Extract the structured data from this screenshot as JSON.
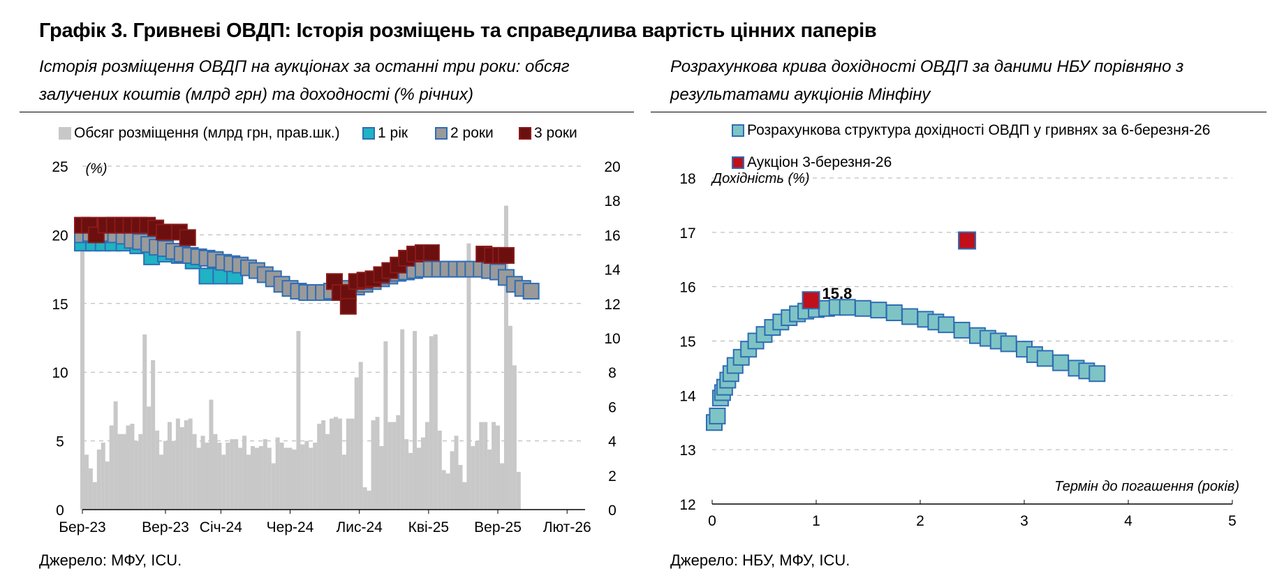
{
  "title": "Графік 3. Гривневі ОВДП: Історія розміщень та справедлива вартість цінних паперів",
  "left": {
    "subtitle": "Історія розміщення ОВДП на аукціонах за останні три роки: обсяг залучених коштів (млрд грн) та доходності (% річних)",
    "source": "Джерело: МФУ, ICU."
  },
  "right": {
    "subtitle": "Розрахункова крива дохідності ОВДП за даними НБУ порівняно з результатами аукціонів Мінфіну",
    "source": "Джерело: НБУ, МФУ, ICU."
  },
  "colors": {
    "volume": "#c8c8c8",
    "y1": "#1fb3c4",
    "y2": "#9a9a9a",
    "y3": "#6b0f0f",
    "marker_border": "#2e6db5",
    "curve_fill": "#7fc4c4",
    "auction": "#c0101a",
    "grid": "#b0b0b0"
  },
  "chart_data": [
    {
      "type": "bar+scatter",
      "legend": [
        "Обсяг розміщення (млрд грн, прав.шк.)",
        "1 рік",
        "2 роки",
        "3 роки"
      ],
      "y_left_label": "(%)",
      "y_left_range": [
        0,
        25
      ],
      "y_left_ticks": [
        "0",
        "5",
        "10",
        "15",
        "20",
        "25"
      ],
      "y_right_range": [
        0,
        20
      ],
      "y_right_ticks": [
        "0",
        "2",
        "4",
        "6",
        "8",
        "10",
        "12",
        "14",
        "16",
        "18",
        "20"
      ],
      "x_ticks": [
        "Бер-23",
        "Вер-23",
        "Січ-24",
        "Чер-24",
        "Лис-24",
        "Кві-25",
        "Вер-25",
        "Лют-26"
      ],
      "x_range_months": [
        0,
        36.3
      ],
      "volume_bars_mlrd": [
        [
          0.0,
          16.3
        ],
        [
          0.3,
          3.2
        ],
        [
          0.6,
          2.4
        ],
        [
          0.9,
          1.6
        ],
        [
          1.2,
          3.5
        ],
        [
          1.5,
          3.9
        ],
        [
          1.8,
          2.8
        ],
        [
          2.1,
          4.9
        ],
        [
          2.4,
          6.3
        ],
        [
          2.7,
          4.4
        ],
        [
          3.0,
          4.4
        ],
        [
          3.3,
          4.9
        ],
        [
          3.6,
          5.0
        ],
        [
          3.9,
          4.0
        ],
        [
          4.2,
          4.4
        ],
        [
          4.5,
          10.2
        ],
        [
          4.8,
          6.0
        ],
        [
          5.1,
          8.7
        ],
        [
          5.4,
          4.6
        ],
        [
          5.7,
          3.2
        ],
        [
          6.0,
          4.0
        ],
        [
          6.3,
          5.1
        ],
        [
          6.6,
          4.0
        ],
        [
          6.9,
          5.3
        ],
        [
          7.2,
          4.8
        ],
        [
          7.5,
          5.2
        ],
        [
          7.8,
          5.3
        ],
        [
          8.1,
          4.4
        ],
        [
          8.4,
          3.6
        ],
        [
          8.7,
          4.3
        ],
        [
          9.0,
          3.9
        ],
        [
          9.3,
          6.4
        ],
        [
          9.6,
          4.4
        ],
        [
          9.9,
          3.9
        ],
        [
          10.2,
          3.2
        ],
        [
          10.5,
          3.9
        ],
        [
          10.8,
          4.1
        ],
        [
          11.1,
          4.1
        ],
        [
          11.4,
          3.6
        ],
        [
          11.7,
          4.3
        ],
        [
          12.0,
          3.2
        ],
        [
          12.3,
          3.7
        ],
        [
          12.6,
          3.6
        ],
        [
          12.9,
          3.7
        ],
        [
          13.2,
          4.1
        ],
        [
          13.5,
          3.6
        ],
        [
          13.8,
          2.7
        ],
        [
          14.1,
          4.2
        ],
        [
          14.4,
          3.9
        ],
        [
          14.7,
          3.6
        ],
        [
          15.0,
          3.6
        ],
        [
          15.3,
          3.5
        ],
        [
          15.6,
          10.4
        ],
        [
          15.9,
          3.8
        ],
        [
          16.2,
          4.0
        ],
        [
          16.5,
          3.6
        ],
        [
          16.8,
          3.9
        ],
        [
          17.1,
          5.0
        ],
        [
          17.4,
          5.2
        ],
        [
          17.7,
          4.4
        ],
        [
          18.0,
          5.3
        ],
        [
          18.3,
          5.4
        ],
        [
          18.6,
          5.3
        ],
        [
          18.9,
          3.2
        ],
        [
          19.2,
          5.3
        ],
        [
          19.5,
          5.3
        ],
        [
          19.8,
          7.7
        ],
        [
          20.1,
          8.6
        ],
        [
          20.4,
          1.3
        ],
        [
          20.7,
          1.1
        ],
        [
          21.0,
          5.2
        ],
        [
          21.3,
          5.4
        ],
        [
          21.6,
          3.7
        ],
        [
          21.9,
          9.8
        ],
        [
          22.2,
          5.1
        ],
        [
          22.5,
          5.1
        ],
        [
          22.8,
          5.5
        ],
        [
          23.1,
          10.5
        ],
        [
          23.4,
          4.1
        ],
        [
          23.7,
          3.3
        ],
        [
          24.0,
          10.4
        ],
        [
          24.3,
          3.6
        ],
        [
          24.6,
          4.2
        ],
        [
          24.9,
          5.1
        ],
        [
          25.2,
          10.1
        ],
        [
          25.5,
          10.2
        ],
        [
          25.8,
          4.6
        ],
        [
          26.1,
          2.3
        ],
        [
          26.4,
          2.1
        ],
        [
          26.7,
          3.4
        ],
        [
          27.0,
          4.3
        ],
        [
          27.3,
          2.6
        ],
        [
          27.6,
          1.6
        ],
        [
          27.9,
          15.5
        ],
        [
          28.2,
          3.7
        ],
        [
          28.5,
          4.0
        ],
        [
          28.8,
          5.1
        ],
        [
          29.1,
          5.1
        ],
        [
          29.4,
          3.5
        ],
        [
          29.7,
          5.1
        ],
        [
          30.0,
          4.9
        ],
        [
          30.3,
          2.7
        ],
        [
          30.6,
          17.7
        ],
        [
          30.9,
          10.7
        ],
        [
          31.2,
          8.4
        ],
        [
          31.5,
          2.2
        ]
      ],
      "series_1y_pct": [
        [
          0.0,
          19.4
        ],
        [
          0.8,
          19.4
        ],
        [
          1.5,
          19.4
        ],
        [
          2.2,
          19.4
        ],
        [
          3.0,
          19.4
        ],
        [
          4.0,
          19.2
        ],
        [
          5.0,
          18.4
        ],
        [
          6.0,
          18.6
        ],
        [
          7.0,
          18.5
        ],
        [
          8.0,
          18.1
        ],
        [
          9.0,
          17.0
        ],
        [
          10.0,
          17.0
        ],
        [
          11.0,
          17.0
        ]
      ],
      "series_2y_pct": [
        [
          0.0,
          20.0
        ],
        [
          0.6,
          20.1
        ],
        [
          1.2,
          20.0
        ],
        [
          1.8,
          20.1
        ],
        [
          2.4,
          20.0
        ],
        [
          3.0,
          19.9
        ],
        [
          3.6,
          19.6
        ],
        [
          4.2,
          19.5
        ],
        [
          4.8,
          19.3
        ],
        [
          5.4,
          19.1
        ],
        [
          6.0,
          19.0
        ],
        [
          6.6,
          18.8
        ],
        [
          7.2,
          18.6
        ],
        [
          7.8,
          18.5
        ],
        [
          8.4,
          18.4
        ],
        [
          9.0,
          18.3
        ],
        [
          9.6,
          18.2
        ],
        [
          10.2,
          18.0
        ],
        [
          10.8,
          17.9
        ],
        [
          11.4,
          17.8
        ],
        [
          12.0,
          17.6
        ],
        [
          12.6,
          17.4
        ],
        [
          13.2,
          17.1
        ],
        [
          13.8,
          16.8
        ],
        [
          14.4,
          16.4
        ],
        [
          15.0,
          16.1
        ],
        [
          15.6,
          15.9
        ],
        [
          16.2,
          15.8
        ],
        [
          16.8,
          15.8
        ],
        [
          17.4,
          15.8
        ],
        [
          18.0,
          15.9
        ],
        [
          18.6,
          16.0
        ],
        [
          19.2,
          16.1
        ],
        [
          19.8,
          16.2
        ],
        [
          20.4,
          16.4
        ],
        [
          21.0,
          16.6
        ],
        [
          21.6,
          16.8
        ],
        [
          22.2,
          17.0
        ],
        [
          22.8,
          17.2
        ],
        [
          23.4,
          17.3
        ],
        [
          24.0,
          17.4
        ],
        [
          24.6,
          17.5
        ],
        [
          25.2,
          17.5
        ],
        [
          25.8,
          17.5
        ],
        [
          26.4,
          17.5
        ],
        [
          27.0,
          17.5
        ],
        [
          27.6,
          17.5
        ],
        [
          28.2,
          17.5
        ],
        [
          28.8,
          17.5
        ],
        [
          29.4,
          17.4
        ],
        [
          30.0,
          17.3
        ],
        [
          30.6,
          16.9
        ],
        [
          31.2,
          16.4
        ],
        [
          31.8,
          16.1
        ],
        [
          32.4,
          15.9
        ]
      ],
      "series_3y_pct": [
        [
          0.0,
          20.7
        ],
        [
          0.5,
          20.7
        ],
        [
          1.0,
          20.0
        ],
        [
          1.7,
          20.7
        ],
        [
          2.3,
          20.7
        ],
        [
          2.9,
          20.7
        ],
        [
          3.5,
          20.7
        ],
        [
          4.1,
          20.7
        ],
        [
          4.7,
          20.7
        ],
        [
          5.3,
          20.5
        ],
        [
          5.9,
          20.2
        ],
        [
          7.0,
          20.2
        ],
        [
          7.6,
          19.8
        ],
        [
          18.2,
          16.6
        ],
        [
          18.6,
          15.8
        ],
        [
          19.2,
          15.8
        ],
        [
          19.2,
          14.8
        ],
        [
          19.8,
          16.6
        ],
        [
          20.4,
          16.7
        ],
        [
          21.0,
          16.8
        ],
        [
          21.6,
          17.1
        ],
        [
          22.2,
          17.4
        ],
        [
          22.8,
          17.8
        ],
        [
          23.4,
          18.3
        ],
        [
          24.0,
          18.6
        ],
        [
          24.6,
          18.7
        ],
        [
          25.2,
          18.7
        ],
        [
          29.0,
          18.6
        ],
        [
          29.6,
          18.5
        ],
        [
          30.2,
          18.5
        ],
        [
          30.6,
          18.5
        ]
      ]
    },
    {
      "type": "scatter",
      "legend": [
        "Розрахункова структура дохідності ОВДП у гривнях за 6-березня-26",
        "Аукціон 3-березня-26"
      ],
      "ylabel": "Дохідність (%)",
      "xlabel": "Термін до погашення (років)",
      "xlim": [
        0,
        5
      ],
      "ylim": [
        12,
        18
      ],
      "x_ticks": [
        "0",
        "1",
        "2",
        "3",
        "4",
        "5"
      ],
      "y_ticks": [
        "12",
        "13",
        "14",
        "15",
        "16",
        "17",
        "18"
      ],
      "curve_points": [
        [
          0.02,
          13.5
        ],
        [
          0.05,
          13.62
        ],
        [
          0.08,
          13.95
        ],
        [
          0.1,
          14.05
        ],
        [
          0.12,
          14.15
        ],
        [
          0.15,
          14.28
        ],
        [
          0.18,
          14.4
        ],
        [
          0.22,
          14.55
        ],
        [
          0.28,
          14.7
        ],
        [
          0.35,
          14.85
        ],
        [
          0.42,
          15.0
        ],
        [
          0.5,
          15.12
        ],
        [
          0.58,
          15.25
        ],
        [
          0.66,
          15.35
        ],
        [
          0.74,
          15.43
        ],
        [
          0.82,
          15.5
        ],
        [
          0.9,
          15.55
        ],
        [
          1.0,
          15.58
        ],
        [
          1.1,
          15.6
        ],
        [
          1.2,
          15.62
        ],
        [
          1.3,
          15.62
        ],
        [
          1.45,
          15.6
        ],
        [
          1.6,
          15.57
        ],
        [
          1.75,
          15.52
        ],
        [
          1.9,
          15.45
        ],
        [
          2.05,
          15.4
        ],
        [
          2.15,
          15.35
        ],
        [
          2.25,
          15.3
        ],
        [
          2.4,
          15.2
        ],
        [
          2.55,
          15.1
        ],
        [
          2.65,
          15.05
        ],
        [
          2.75,
          15.0
        ],
        [
          2.85,
          14.95
        ],
        [
          3.0,
          14.85
        ],
        [
          3.1,
          14.75
        ],
        [
          3.2,
          14.68
        ],
        [
          3.35,
          14.6
        ],
        [
          3.5,
          14.5
        ],
        [
          3.6,
          14.45
        ],
        [
          3.7,
          14.4
        ]
      ],
      "auction_points": [
        [
          0.95,
          15.75
        ],
        [
          2.45,
          16.85
        ]
      ],
      "annotation": {
        "x": 0.95,
        "y": 15.75,
        "text": "15.8"
      }
    }
  ]
}
